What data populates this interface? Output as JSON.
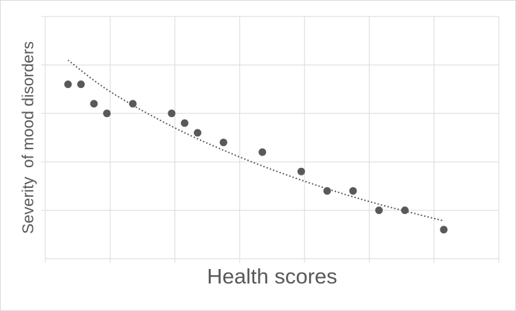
{
  "chart_data": {
    "type": "scatter",
    "title": "",
    "xlabel": "Health scores",
    "ylabel": "Severity  of mood disorders",
    "xlim": [
      0,
      7
    ],
    "ylim": [
      0,
      5
    ],
    "grid": true,
    "legend": "none",
    "tick_labels_shown": false,
    "points": [
      {
        "x": 0.35,
        "y": 3.6
      },
      {
        "x": 0.55,
        "y": 3.6
      },
      {
        "x": 0.75,
        "y": 3.2
      },
      {
        "x": 0.95,
        "y": 3.0
      },
      {
        "x": 1.35,
        "y": 3.2
      },
      {
        "x": 1.95,
        "y": 3.0
      },
      {
        "x": 2.15,
        "y": 2.8
      },
      {
        "x": 2.35,
        "y": 2.6
      },
      {
        "x": 2.75,
        "y": 2.4
      },
      {
        "x": 3.35,
        "y": 2.2
      },
      {
        "x": 3.95,
        "y": 1.8
      },
      {
        "x": 4.35,
        "y": 1.4
      },
      {
        "x": 4.75,
        "y": 1.4
      },
      {
        "x": 5.15,
        "y": 1.0
      },
      {
        "x": 5.55,
        "y": 1.0
      },
      {
        "x": 6.15,
        "y": 0.6
      }
    ],
    "trendline": {
      "style": "dotted",
      "x": [
        0.35,
        1.0,
        2.0,
        3.0,
        4.0,
        5.0,
        6.15
      ],
      "y": [
        4.1,
        3.45,
        2.7,
        2.1,
        1.6,
        1.18,
        0.78
      ]
    },
    "colors": {
      "marker": "#595959",
      "trendline": "#595959",
      "grid": "#d9d9d9",
      "text": "#595959"
    }
  }
}
